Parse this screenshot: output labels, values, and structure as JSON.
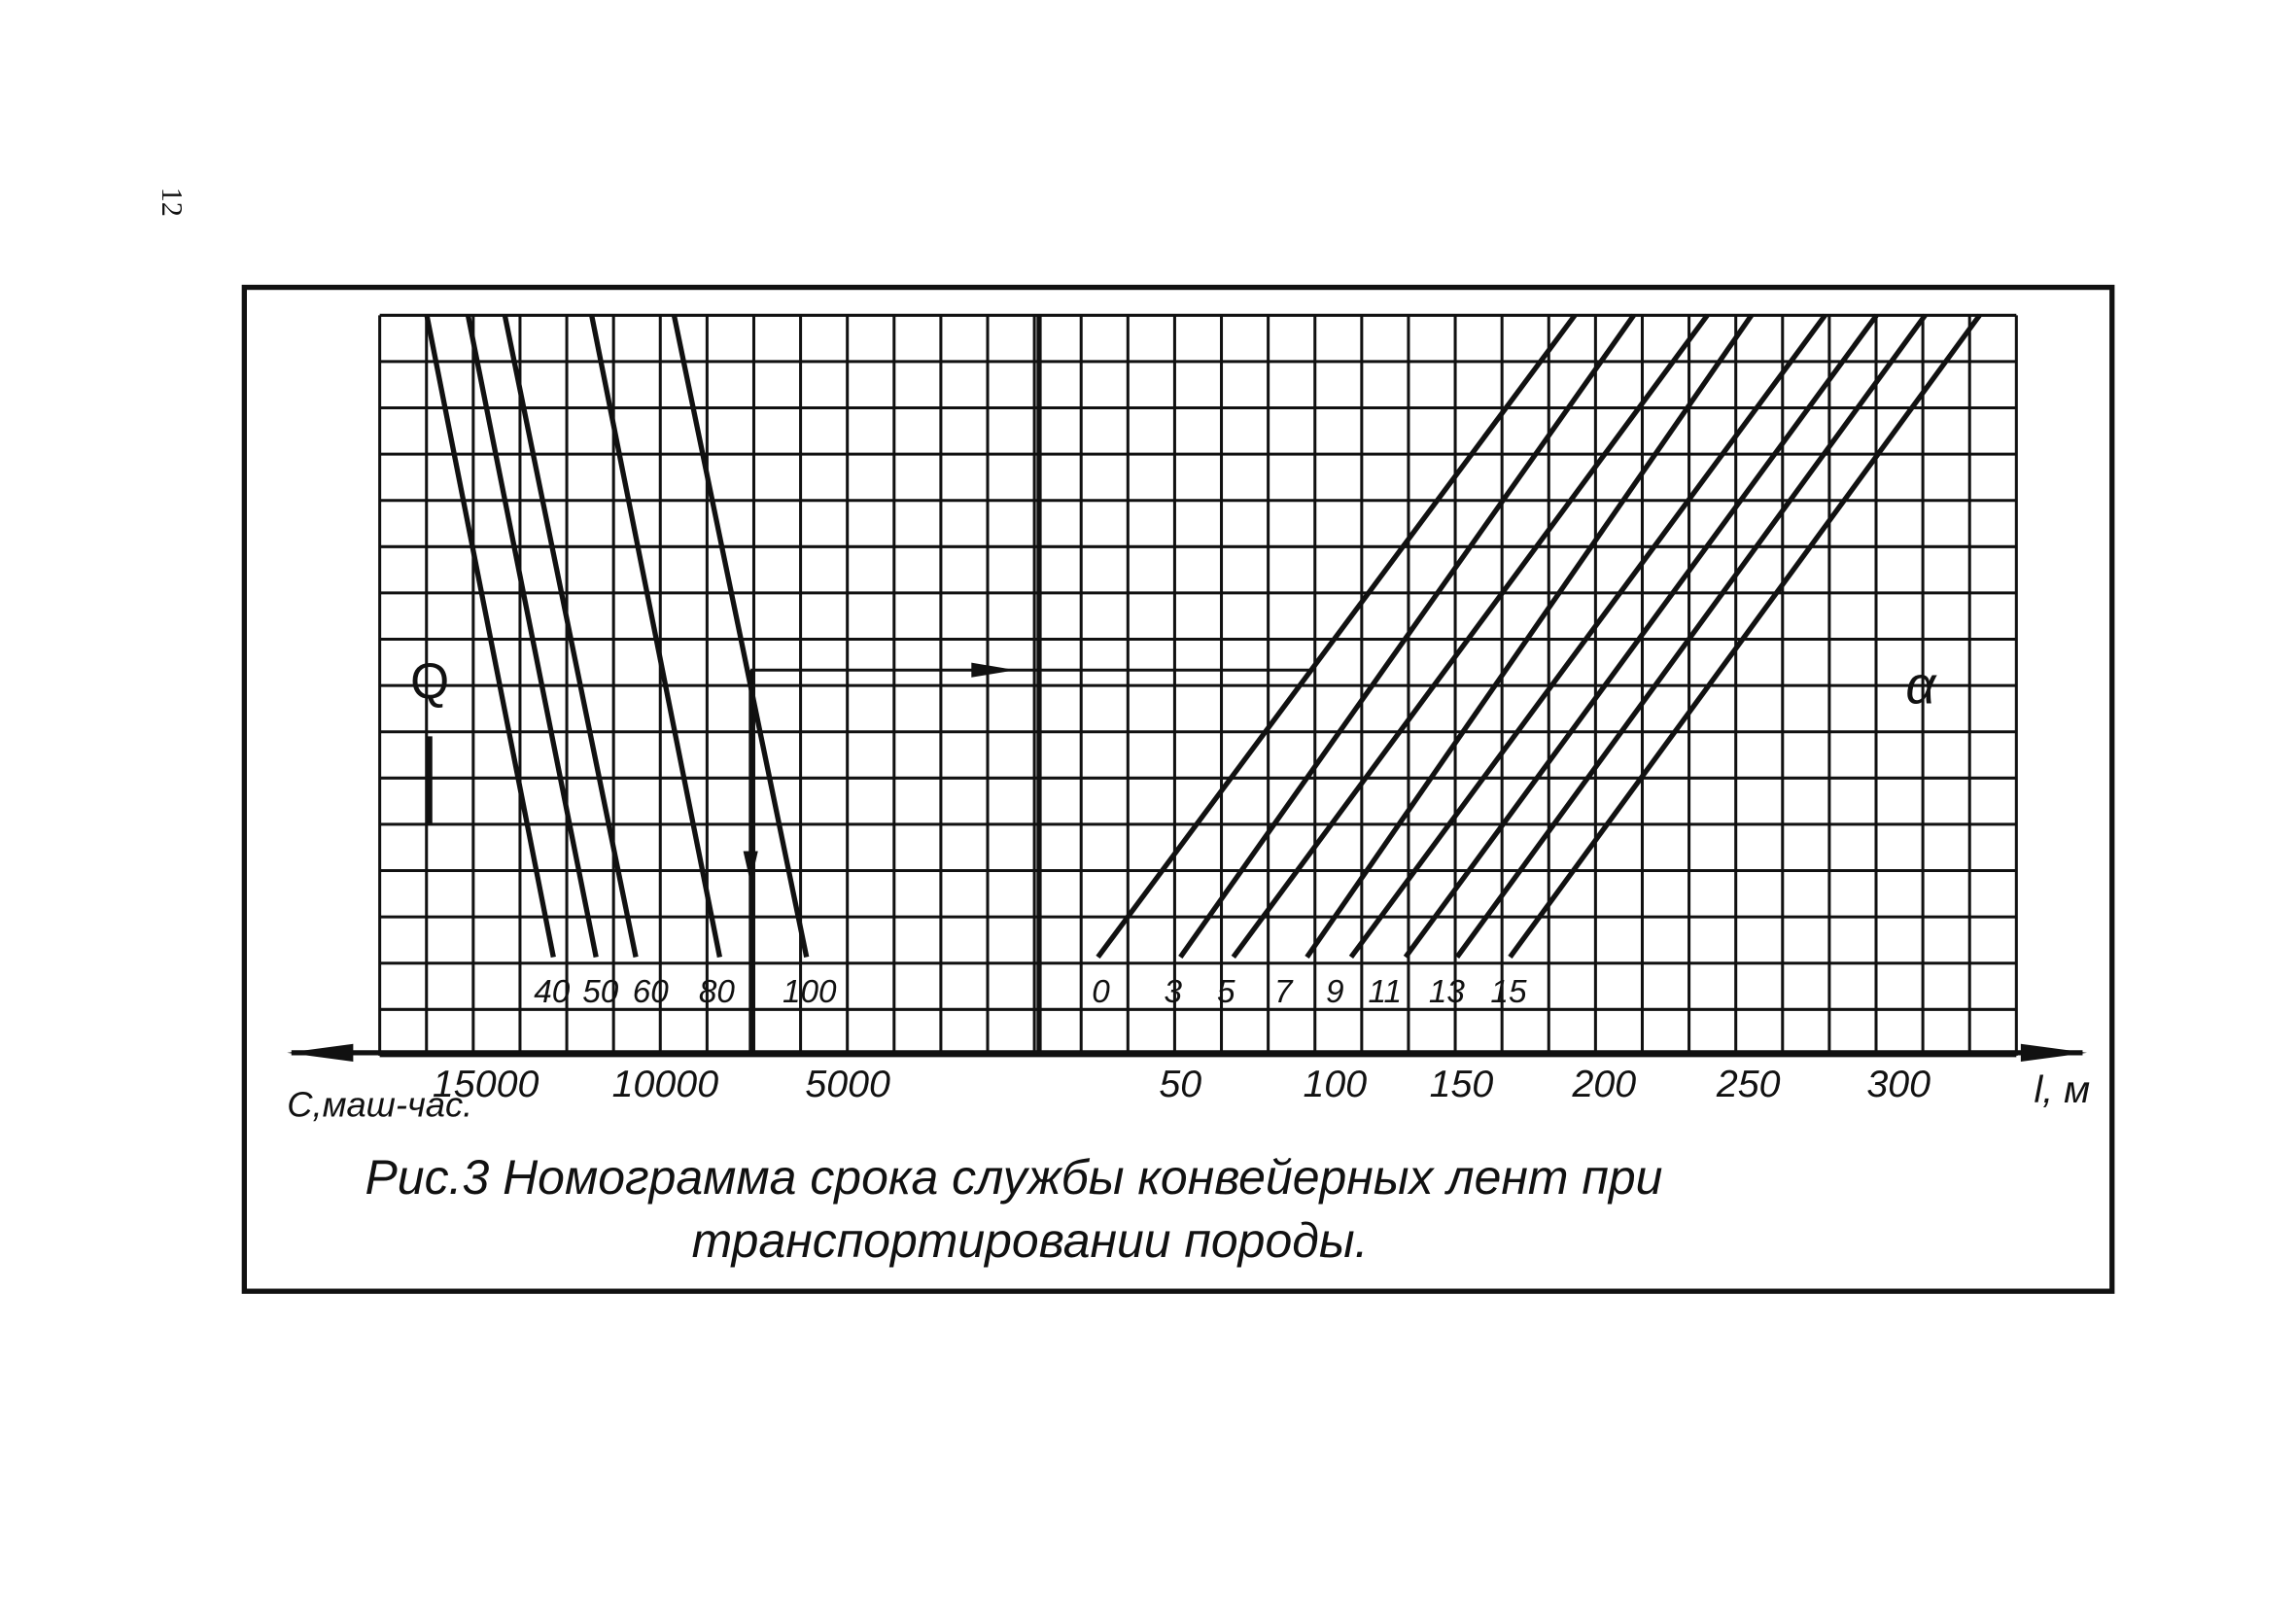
{
  "page_number": "12",
  "figure": {
    "left_scale_label": "Q",
    "right_scale_label": "α",
    "left_curve_labels": [
      "40",
      "50",
      "60",
      "80",
      "100"
    ],
    "right_curve_labels": [
      "0",
      "3",
      "5",
      "7",
      "9",
      "11",
      "13",
      "15"
    ],
    "c_axis_ticks": [
      "15000",
      "10000",
      "5000"
    ],
    "c_axis_label": "С,маш-час.",
    "l_axis_ticks": [
      "50",
      "100",
      "150",
      "200",
      "250",
      "300"
    ],
    "l_axis_label": "l, м"
  },
  "caption": [
    "Рис.3 Номограмма срока службы конвейерных лент   при",
    "транспортировании   породы."
  ]
}
